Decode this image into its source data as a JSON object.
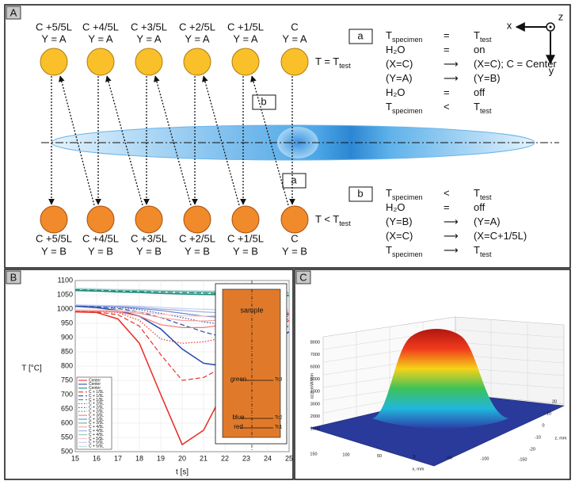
{
  "panel_a": {
    "label": "A",
    "top_row": [
      [
        "C +5/5L",
        "Y = A"
      ],
      [
        "C +4/5L",
        "Y = A"
      ],
      [
        "C +3/5L",
        "Y = A"
      ],
      [
        "C +2/5L",
        "Y = A"
      ],
      [
        "C +1/5L",
        "Y = A"
      ],
      [
        "C",
        "Y = A"
      ]
    ],
    "bottom_row": [
      [
        "C +5/5L",
        "Y = B"
      ],
      [
        "C +4/5L",
        "Y = B"
      ],
      [
        "C +3/5L",
        "Y = B"
      ],
      [
        "C +2/5L",
        "Y = B"
      ],
      [
        "C +1/5L",
        "Y = B"
      ],
      [
        "C",
        "Y = B"
      ]
    ],
    "top_condition": [
      "T = T",
      {
        "sub": "test"
      }
    ],
    "bottom_condition": [
      "T < T",
      {
        "sub": "test"
      }
    ],
    "marker_a": "a",
    "marker_b": "b",
    "axes": {
      "x": "x",
      "y": "y",
      "z": "z"
    },
    "step_a": {
      "label": "a",
      "rows": [
        [
          [
            "T",
            {
              "sub": "specimen"
            }
          ],
          [
            "="
          ],
          [
            "T",
            {
              "sub": "test"
            }
          ]
        ],
        [
          [
            "H₂O"
          ],
          [
            "="
          ],
          [
            "on"
          ]
        ],
        [
          [
            "(X=C)"
          ],
          [
            "⟶"
          ],
          [
            "(X=C); C = Center"
          ]
        ],
        [
          [
            "(Y=A)"
          ],
          [
            "⟶"
          ],
          [
            "(Y=B)"
          ]
        ],
        [
          [
            "H₂O"
          ],
          [
            "="
          ],
          [
            "off"
          ]
        ],
        [
          [
            "T",
            {
              "sub": "specimen"
            }
          ],
          [
            "<"
          ],
          [
            "T",
            {
              "sub": "test"
            }
          ]
        ]
      ]
    },
    "step_b": {
      "label": "b",
      "rows": [
        [
          [
            "T",
            {
              "sub": "specimen"
            }
          ],
          [
            "<"
          ],
          [
            "T",
            {
              "sub": "test"
            }
          ]
        ],
        [
          [
            "H₂O"
          ],
          [
            "="
          ],
          [
            "off"
          ]
        ],
        [
          [
            "(Y=B)"
          ],
          [
            "⟶"
          ],
          [
            "(Y=A)"
          ]
        ],
        [
          [
            "(X=C)"
          ],
          [
            "⟶"
          ],
          [
            "(X=C+1/5L)"
          ]
        ],
        [
          [
            "T",
            {
              "sub": "specimen"
            }
          ],
          [
            "⟶"
          ],
          [
            "T",
            {
              "sub": "test"
            }
          ]
        ]
      ]
    }
  },
  "chart_data": {
    "type": "line",
    "label": "B",
    "xlabel": "t [s]",
    "ylabel": "T [°C]",
    "x": [
      15,
      16,
      17,
      18,
      19,
      20,
      21,
      22,
      23,
      24,
      25
    ],
    "xlim": [
      15,
      25
    ],
    "xticks": [
      15,
      16,
      17,
      18,
      19,
      20,
      21,
      22,
      23,
      24,
      25
    ],
    "ylim": [
      500,
      1100
    ],
    "yticks": [
      500,
      550,
      600,
      650,
      700,
      750,
      800,
      850,
      900,
      950,
      1000,
      1050,
      1100
    ],
    "grid": true,
    "legend": "lower left",
    "series": [
      {
        "name": "Center",
        "color": "#e8352a",
        "style": "solid",
        "values": [
          990,
          988,
          965,
          880,
          700,
          525,
          575,
          720,
          850,
          940,
          985
        ]
      },
      {
        "name": "Center",
        "color": "#2a4fb0",
        "style": "solid",
        "values": [
          1010,
          1005,
          995,
          975,
          930,
          860,
          810,
          800,
          830,
          880,
          920
        ]
      },
      {
        "name": "Center",
        "color": "#1f8a7a",
        "style": "solid",
        "values": [
          1065,
          1063,
          1060,
          1058,
          1055,
          1053,
          1051,
          1050,
          1049,
          1048,
          1047
        ]
      },
      {
        "name": "C + 1/5L",
        "color": "#e8352a",
        "style": "dashed",
        "values": [
          992,
          990,
          980,
          940,
          840,
          750,
          760,
          800,
          860,
          920,
          960
        ]
      },
      {
        "name": "C + 1/5L",
        "color": "#2a4fb0",
        "style": "dashed",
        "values": [
          1010,
          1008,
          1002,
          990,
          970,
          945,
          920,
          900,
          900,
          920,
          940
        ]
      },
      {
        "name": "C + 1/5L",
        "color": "#1f8a7a",
        "style": "dashed",
        "values": [
          1068,
          1066,
          1064,
          1062,
          1060,
          1058,
          1056,
          1054,
          1053,
          1052,
          1051
        ]
      },
      {
        "name": "C + 2/5L",
        "color": "#e8352a",
        "style": "dotted",
        "values": [
          994,
          992,
          988,
          960,
          895,
          880,
          885,
          900,
          930,
          960,
          975
        ]
      },
      {
        "name": "C + 2/5L",
        "color": "#2a4fb0",
        "style": "dotted",
        "values": [
          1012,
          1010,
          1006,
          998,
          985,
          970,
          955,
          945,
          945,
          955,
          965
        ]
      },
      {
        "name": "C + 2/5L",
        "color": "#1f8a7a",
        "style": "dotted",
        "values": [
          1070,
          1068,
          1066,
          1064,
          1062,
          1060,
          1058,
          1057,
          1056,
          1055,
          1054
        ]
      },
      {
        "name": "C + 3/5L",
        "color": "#f07a70",
        "style": "solid",
        "values": [
          995,
          993,
          990,
          975,
          945,
          935,
          935,
          945,
          960,
          975,
          985
        ]
      },
      {
        "name": "C + 3/5L",
        "color": "#6b86d0",
        "style": "solid",
        "values": [
          1013,
          1011,
          1008,
          1002,
          995,
          985,
          975,
          970,
          970,
          975,
          980
        ]
      },
      {
        "name": "C + 3/5L",
        "color": "#5fb0a4",
        "style": "solid",
        "values": [
          1071,
          1069,
          1067,
          1065,
          1063,
          1062,
          1060,
          1059,
          1058,
          1057,
          1056
        ]
      },
      {
        "name": "C + 4/5L",
        "color": "#f5a39c",
        "style": "solid",
        "values": [
          996,
          995,
          993,
          985,
          970,
          960,
          958,
          962,
          970,
          980,
          988
        ]
      },
      {
        "name": "C + 4/5L",
        "color": "#9aaee0",
        "style": "solid",
        "values": [
          1014,
          1012,
          1010,
          1006,
          1000,
          995,
          990,
          986,
          985,
          988,
          990
        ]
      },
      {
        "name": "C + 4/5L",
        "color": "#8cc8bf",
        "style": "solid",
        "values": [
          1072,
          1070,
          1068,
          1066,
          1065,
          1063,
          1062,
          1061,
          1060,
          1059,
          1058
        ]
      },
      {
        "name": "C + 5/5L",
        "color": "#f9c7c2",
        "style": "solid",
        "values": [
          997,
          996,
          995,
          990,
          982,
          976,
          975,
          978,
          983,
          988,
          992
        ]
      },
      {
        "name": "C + 5/5L",
        "color": "#c3cfee",
        "style": "solid",
        "values": [
          1015,
          1013,
          1012,
          1010,
          1006,
          1002,
          999,
          997,
          996,
          997,
          998
        ]
      },
      {
        "name": "C + 5/5L",
        "color": "#b8ddd7",
        "style": "solid",
        "values": [
          1073,
          1071,
          1069,
          1068,
          1066,
          1065,
          1064,
          1063,
          1062,
          1061,
          1060
        ]
      }
    ],
    "inset": {
      "sample": "sample",
      "thermocouples": [
        {
          "name": "green",
          "id": "Tc3"
        },
        {
          "name": "blue",
          "id": "Tc2"
        },
        {
          "name": "red",
          "id": "Tc1"
        }
      ]
    }
  },
  "panel_c": {
    "label": "C",
    "z_label": "αzz, mW/mm",
    "zticks": [
      1000,
      2000,
      3000,
      4000,
      5000,
      6000,
      7000,
      8000
    ],
    "x_label": "x, mm",
    "xticks": [
      150,
      100,
      50,
      0,
      -50,
      -100,
      -150
    ],
    "depth_label": "z, mm",
    "depth_ticks": [
      20,
      10,
      0,
      -10,
      -20
    ]
  }
}
